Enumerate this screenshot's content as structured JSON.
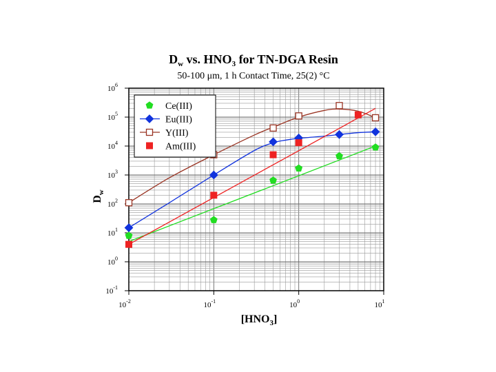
{
  "chart_data": {
    "type": "scatter",
    "title_main": "D",
    "title_sub": "w",
    "title_mid": " vs. HNO",
    "title_sub2": "3",
    "title_end": " for TN-DGA Resin",
    "subtitle": "50-100 μm, 1 h Contact Time, 25(2) °C",
    "xlabel_main": "[HNO",
    "xlabel_sub": "3",
    "xlabel_end": "]",
    "ylabel_main": "D",
    "ylabel_sub": "w",
    "x_scale": "log",
    "y_scale": "log",
    "xlim": [
      0.01,
      10
    ],
    "ylim": [
      0.1,
      1000000
    ],
    "grid": true,
    "legend_position": "top-left",
    "x_ticks": [
      {
        "base": "10",
        "exp": "-2"
      },
      {
        "base": "10",
        "exp": "-1"
      },
      {
        "base": "10",
        "exp": "0"
      },
      {
        "base": "10",
        "exp": "1"
      }
    ],
    "y_ticks": [
      {
        "base": "10",
        "exp": "-1"
      },
      {
        "base": "10",
        "exp": "0"
      },
      {
        "base": "10",
        "exp": "1"
      },
      {
        "base": "10",
        "exp": "2"
      },
      {
        "base": "10",
        "exp": "3"
      },
      {
        "base": "10",
        "exp": "4"
      },
      {
        "base": "10",
        "exp": "5"
      },
      {
        "base": "10",
        "exp": "6"
      }
    ],
    "series": [
      {
        "name": "Ce(III)",
        "color": "#22dd22",
        "marker": "pentagon-filled",
        "x": [
          0.01,
          0.1,
          0.5,
          1,
          3,
          8
        ],
        "y": [
          8,
          28,
          650,
          1700,
          4500,
          9000
        ],
        "fit": [
          [
            0.01,
            5
          ],
          [
            8,
            10000
          ]
        ]
      },
      {
        "name": "Eu(III)",
        "color": "#1133dd",
        "marker": "diamond-filled",
        "x": [
          0.01,
          0.1,
          0.5,
          1,
          3,
          8
        ],
        "y": [
          15,
          1000,
          14000,
          19000,
          25000,
          31000
        ],
        "fit": [
          [
            0.01,
            15
          ],
          [
            0.03,
            110
          ],
          [
            0.1,
            1000
          ],
          [
            0.3,
            7000
          ],
          [
            0.5,
            13000
          ],
          [
            0.7,
            16000
          ],
          [
            1,
            18500
          ],
          [
            2,
            22000
          ],
          [
            3,
            25000
          ],
          [
            5,
            29000
          ],
          [
            8,
            31000
          ]
        ]
      },
      {
        "name": "Y(III)",
        "color": "#993322",
        "marker": "square-open",
        "x": [
          0.01,
          0.1,
          0.5,
          1,
          3,
          8
        ],
        "y": [
          110,
          5000,
          42000,
          110000,
          250000,
          95000
        ],
        "fit": [
          [
            0.01,
            110
          ],
          [
            0.03,
            800
          ],
          [
            0.1,
            5000
          ],
          [
            0.3,
            24000
          ],
          [
            0.5,
            45000
          ],
          [
            1,
            100000
          ],
          [
            2,
            170000
          ],
          [
            3,
            190000
          ],
          [
            5,
            160000
          ],
          [
            8,
            95000
          ]
        ]
      },
      {
        "name": "Am(III)",
        "color": "#ee2222",
        "marker": "square-filled",
        "x": [
          0.01,
          0.1,
          0.5,
          1,
          5
        ],
        "y": [
          4,
          200,
          5000,
          13000,
          120000
        ],
        "fit": [
          [
            0.01,
            4
          ],
          [
            8,
            200000
          ]
        ]
      }
    ]
  }
}
